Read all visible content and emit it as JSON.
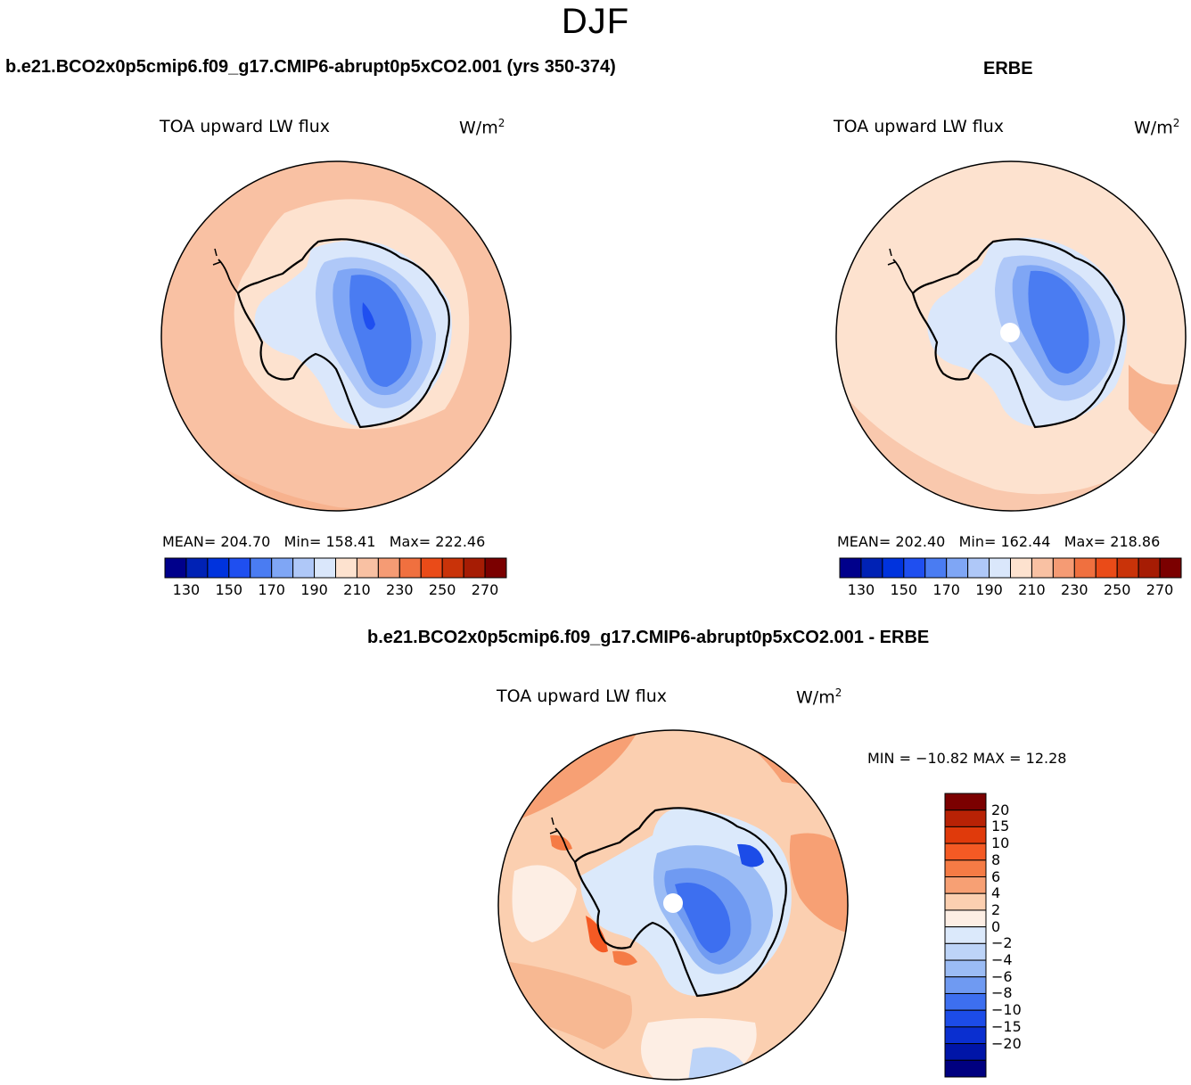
{
  "figure": {
    "season": "DJF"
  },
  "panels": [
    {
      "case_title": "b.e21.BCO2x0p5cmip6.f09_g17.CMIP6-abrupt0p5xCO2.001 (yrs 350-374)",
      "variable": "TOA upward LW flux",
      "units_base": "W/m",
      "units_exp": "2",
      "mean_label": "MEAN=",
      "mean_value": "204.70",
      "min_label": "Min=",
      "min_value": "158.41",
      "max_label": "Max=",
      "max_value": "222.46"
    },
    {
      "case_title": "ERBE",
      "variable": "TOA upward LW flux",
      "units_base": "W/m",
      "units_exp": "2",
      "mean_label": "MEAN=",
      "mean_value": "202.40",
      "min_label": "Min=",
      "min_value": "162.44",
      "max_label": "Max=",
      "max_value": "218.86"
    },
    {
      "case_title": "b.e21.BCO2x0p5cmip6.f09_g17.CMIP6-abrupt0p5xCO2.001 - ERBE",
      "variable": "TOA upward LW flux",
      "units_base": "W/m",
      "units_exp": "2",
      "minmax_text": "MIN = −10.82 MAX =  12.28"
    }
  ],
  "colorbars": {
    "absolute": {
      "colors": [
        "#00008b",
        "#0022b5",
        "#0033dd",
        "#1f4ff0",
        "#4a7cf2",
        "#7fa6f5",
        "#afc8f8",
        "#dae7fb",
        "#fde2cf",
        "#f9c1a3",
        "#f59b74",
        "#f0703f",
        "#ea4b18",
        "#c93309",
        "#a61c04",
        "#7b0000"
      ],
      "tick_labels": [
        "130",
        "150",
        "170",
        "190",
        "210",
        "230",
        "250",
        "270"
      ]
    },
    "difference": {
      "colors": [
        "#7b0000",
        "#b82205",
        "#e03a0b",
        "#f45a24",
        "#f57b45",
        "#f7a074",
        "#fbcfb0",
        "#fdeee4",
        "#dbe9fb",
        "#bdd4f8",
        "#9bbcf5",
        "#6f9af2",
        "#3d6ff0",
        "#1c4ce8",
        "#0a2fd0",
        "#0015a8",
        "#000080"
      ],
      "tick_labels": [
        "20",
        "15",
        "10",
        "8",
        "6",
        "4",
        "2",
        "0",
        "−2",
        "−4",
        "−6",
        "−8",
        "−10",
        "−15",
        "−20"
      ]
    }
  },
  "chart_data": [
    {
      "type": "heatmap",
      "projection": "south polar stereographic",
      "title": "b.e21.BCO2x0p5cmip6.f09_g17.CMIP6-abrupt0p5xCO2.001 (yrs 350-374)",
      "variable": "TOA upward LW flux",
      "units": "W/m2",
      "levels": [
        130,
        140,
        150,
        160,
        170,
        180,
        190,
        200,
        210,
        220,
        230,
        240,
        250,
        260,
        270
      ],
      "mean": 204.7,
      "min": 158.41,
      "max": 222.46
    },
    {
      "type": "heatmap",
      "projection": "south polar stereographic",
      "title": "ERBE",
      "variable": "TOA upward LW flux",
      "units": "W/m2",
      "levels": [
        130,
        140,
        150,
        160,
        170,
        180,
        190,
        200,
        210,
        220,
        230,
        240,
        250,
        260,
        270
      ],
      "mean": 202.4,
      "min": 162.44,
      "max": 218.86
    },
    {
      "type": "heatmap",
      "projection": "south polar stereographic",
      "title": "b.e21.BCO2x0p5cmip6.f09_g17.CMIP6-abrupt0p5xCO2.001 - ERBE",
      "variable": "TOA upward LW flux",
      "units": "W/m2",
      "levels": [
        -20,
        -15,
        -10,
        -8,
        -6,
        -4,
        -2,
        0,
        2,
        4,
        6,
        8,
        10,
        15,
        20
      ],
      "min": -10.82,
      "max": 12.28
    }
  ]
}
